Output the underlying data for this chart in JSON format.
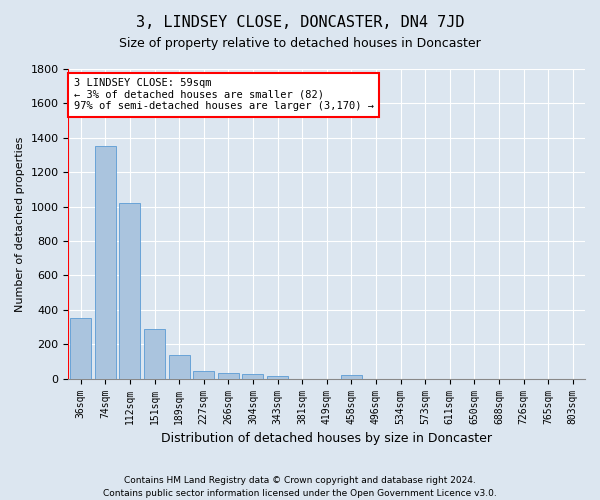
{
  "title": "3, LINDSEY CLOSE, DONCASTER, DN4 7JD",
  "subtitle": "Size of property relative to detached houses in Doncaster",
  "xlabel": "Distribution of detached houses by size in Doncaster",
  "ylabel": "Number of detached properties",
  "footer_line1": "Contains HM Land Registry data © Crown copyright and database right 2024.",
  "footer_line2": "Contains public sector information licensed under the Open Government Licence v3.0.",
  "categories": [
    "36sqm",
    "74sqm",
    "112sqm",
    "151sqm",
    "189sqm",
    "227sqm",
    "266sqm",
    "304sqm",
    "343sqm",
    "381sqm",
    "419sqm",
    "458sqm",
    "496sqm",
    "534sqm",
    "573sqm",
    "611sqm",
    "650sqm",
    "688sqm",
    "726sqm",
    "765sqm",
    "803sqm"
  ],
  "values": [
    355,
    1355,
    1020,
    290,
    135,
    45,
    35,
    25,
    18,
    0,
    0,
    20,
    0,
    0,
    0,
    0,
    0,
    0,
    0,
    0,
    0
  ],
  "bar_color": "#aac4de",
  "bar_edgecolor": "#5b9bd5",
  "property_line_color": "red",
  "ylim": [
    0,
    1800
  ],
  "yticks": [
    0,
    200,
    400,
    600,
    800,
    1000,
    1200,
    1400,
    1600,
    1800
  ],
  "annotation_line1": "3 LINDSEY CLOSE: 59sqm",
  "annotation_line2": "← 3% of detached houses are smaller (82)",
  "annotation_line3": "97% of semi-detached houses are larger (3,170) →",
  "annotation_box_color": "white",
  "annotation_box_edgecolor": "red",
  "background_color": "#dce6f0",
  "grid_color": "white",
  "title_fontsize": 11,
  "subtitle_fontsize": 9,
  "ylabel_fontsize": 8,
  "xlabel_fontsize": 9,
  "tick_fontsize": 8,
  "xtick_fontsize": 7
}
